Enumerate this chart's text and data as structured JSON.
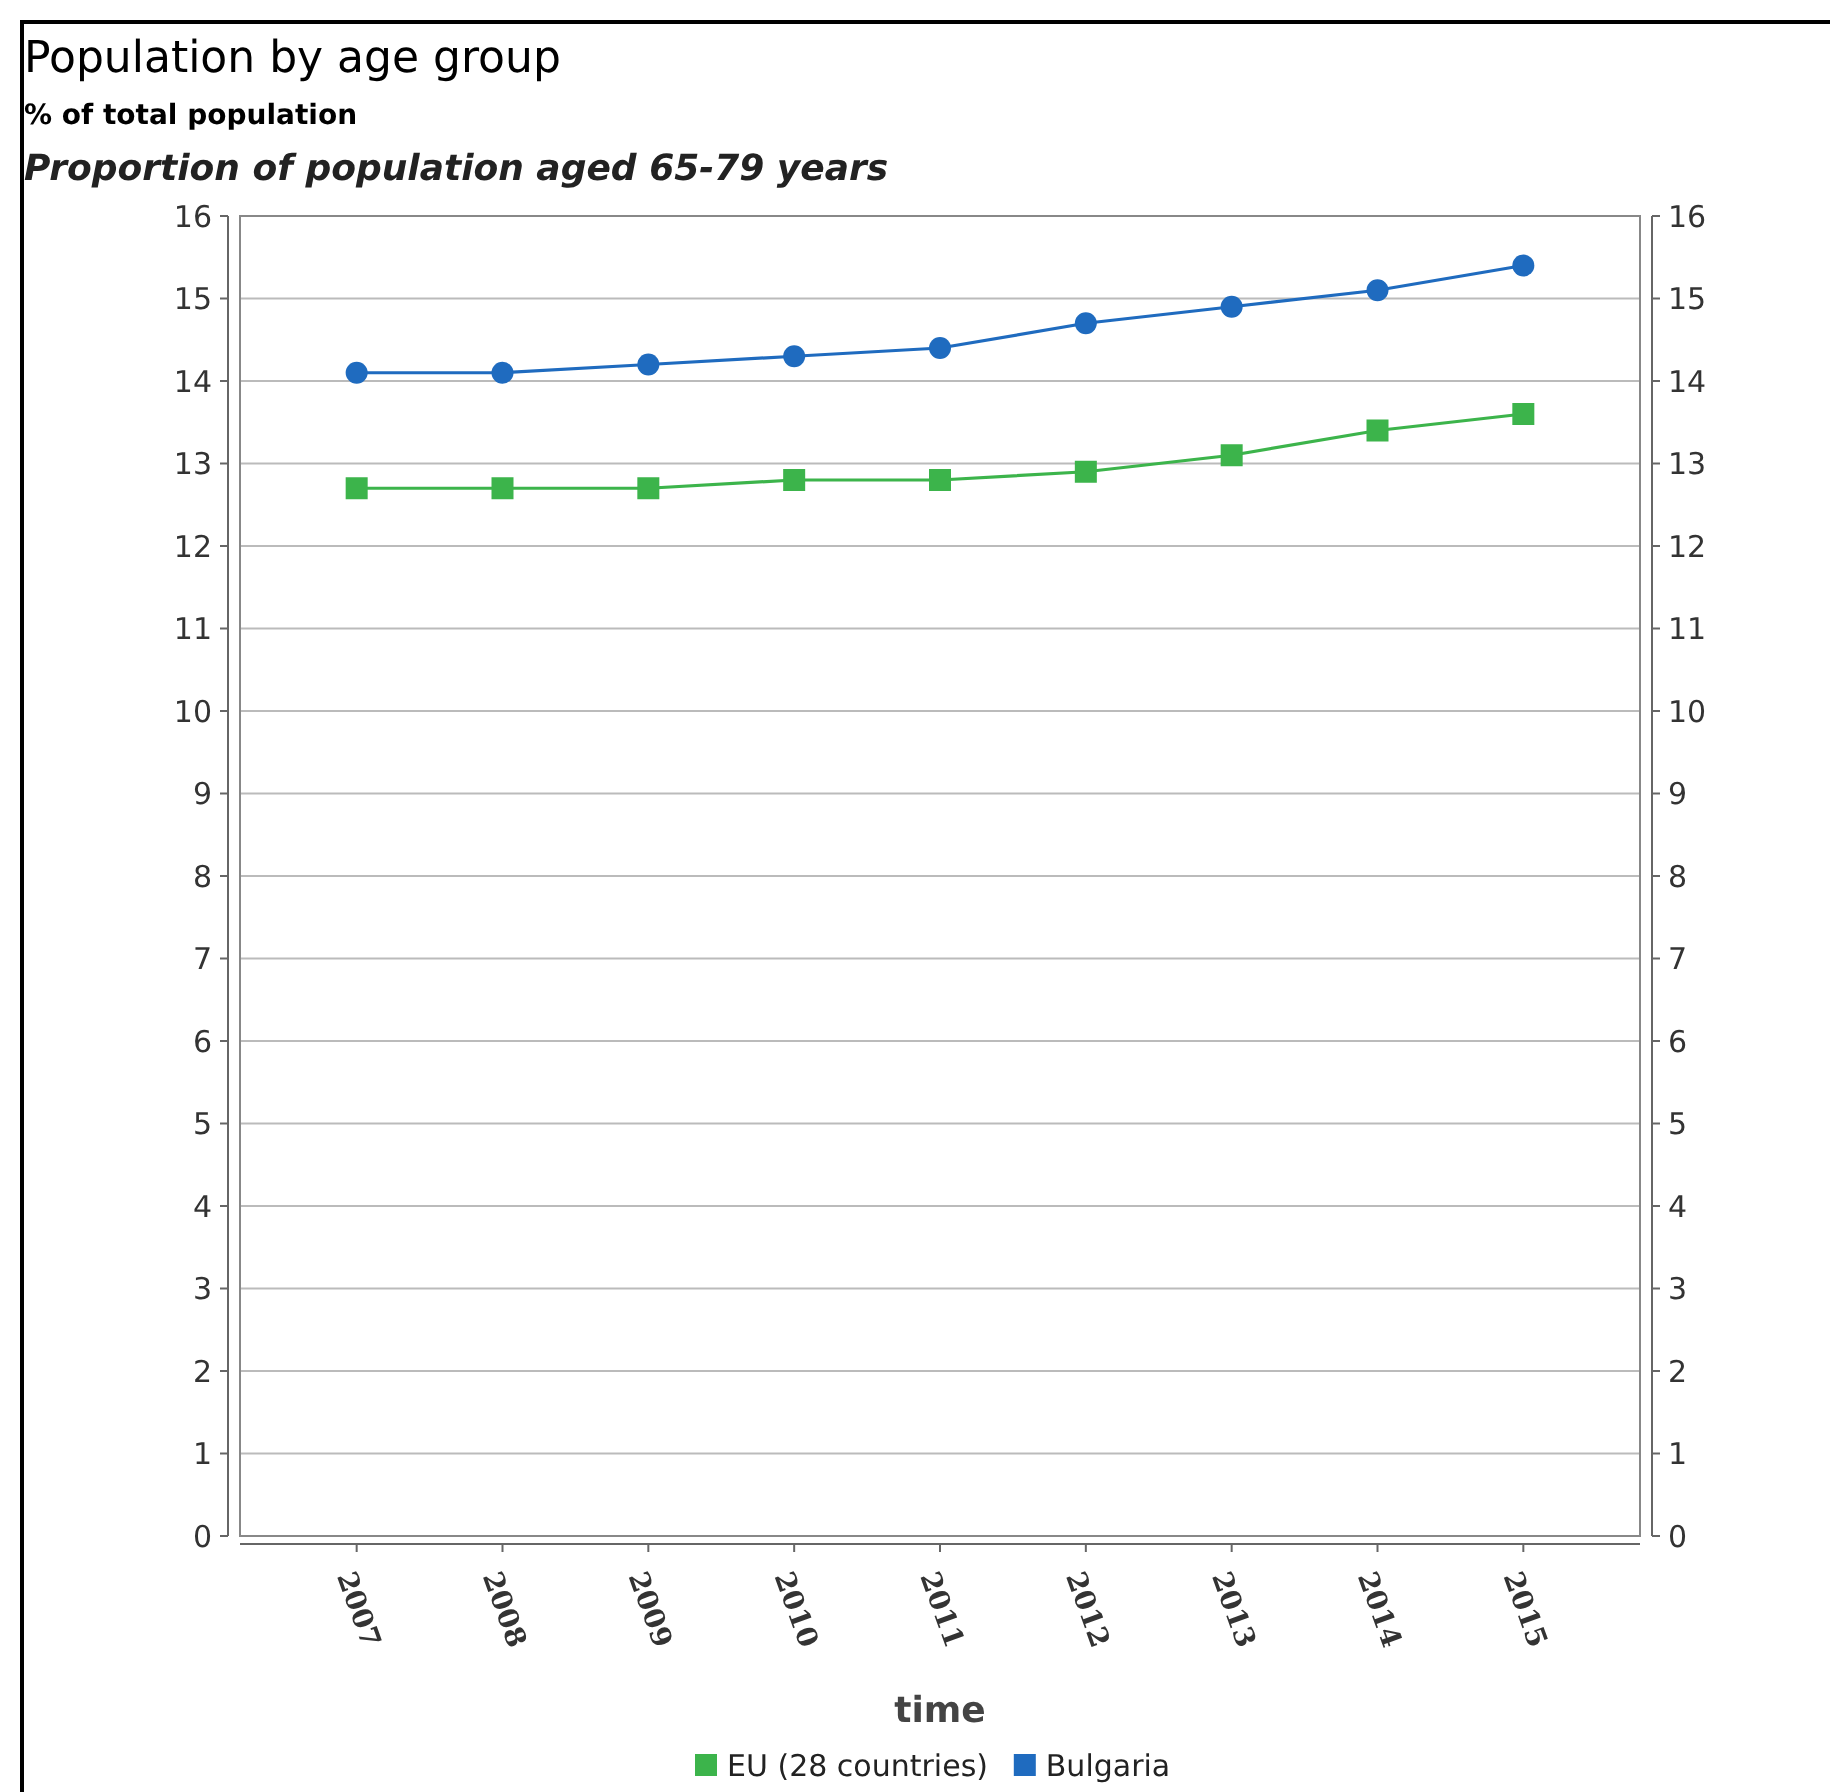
{
  "chart_data": {
    "type": "line",
    "title": "Population by age group",
    "subtitle": "% of total population",
    "annotations": [
      "Proportion of population aged 65-79 years"
    ],
    "xlabel": "time",
    "categories": [
      "2007",
      "2008",
      "2009",
      "2010",
      "2011",
      "2012",
      "2013",
      "2014",
      "2015"
    ],
    "series": [
      {
        "name": "EU (28 countries)",
        "color": "#3cb44b",
        "marker": "square",
        "values": [
          12.7,
          12.7,
          12.7,
          12.8,
          12.8,
          12.9,
          13.1,
          13.4,
          13.6
        ]
      },
      {
        "name": "Bulgaria",
        "color": "#1f6bbf",
        "marker": "circle",
        "values": [
          14.1,
          14.1,
          14.2,
          14.3,
          14.4,
          14.7,
          14.9,
          15.1,
          15.4
        ]
      }
    ],
    "ylim": [
      0,
      16
    ],
    "yticks": [
      0,
      1,
      2,
      3,
      4,
      5,
      6,
      7,
      8,
      9,
      10,
      11,
      12,
      13,
      14,
      15,
      16
    ],
    "y2lim": [
      0,
      16
    ],
    "y2ticks": [
      0,
      1,
      2,
      3,
      4,
      5,
      6,
      7,
      8,
      9,
      10,
      11,
      12,
      13,
      14,
      15,
      16
    ],
    "grid": "y",
    "legend": "bottom"
  }
}
